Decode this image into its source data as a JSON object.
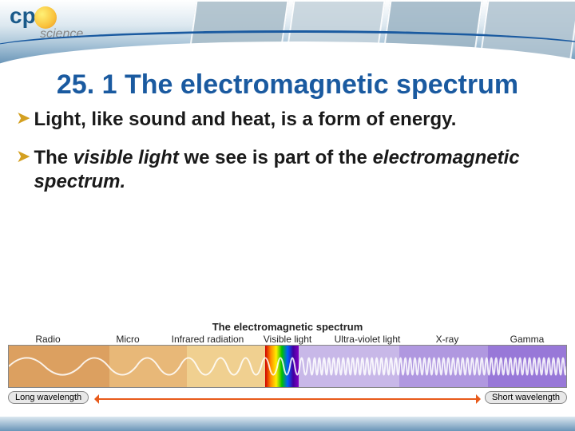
{
  "logo": {
    "part1": "cp",
    "part2": "science"
  },
  "title": "25. 1 The electromagnetic spectrum",
  "bullets": [
    {
      "pre": "Light, like sound and heat, is a form of energy.",
      "italic1": "",
      "mid": "",
      "italic2": "",
      "post": ""
    },
    {
      "pre": "The ",
      "italic1": "visible light ",
      "mid": "we see is part of the ",
      "italic2": "electromagnetic spectrum.",
      "post": ""
    }
  ],
  "spectrum": {
    "title": "The electromagnetic spectrum",
    "bands": [
      {
        "label": "Radio",
        "width_pct": 18,
        "color": "#dca060"
      },
      {
        "label": "Micro",
        "width_pct": 14,
        "color": "#e8b878"
      },
      {
        "label": "Infrared radiation",
        "width_pct": 14,
        "color": "#f0d090"
      },
      {
        "label": "Visible light",
        "width_pct": 6,
        "color": "rainbow"
      },
      {
        "label": "Ultra-violet light",
        "width_pct": 18,
        "color": "#c8b8e8"
      },
      {
        "label": "X-ray",
        "width_pct": 16,
        "color": "#b098e0"
      },
      {
        "label": "Gamma",
        "width_pct": 14,
        "color": "#9878d8"
      }
    ],
    "long_label": "Long wavelength",
    "short_label": "Short wavelength",
    "wave_color": "#ffffff",
    "wave_opacity": 0.85
  },
  "colors": {
    "title": "#1a5aa0",
    "bullet_marker": "#d4a020",
    "arrow": "#e85a1a"
  }
}
